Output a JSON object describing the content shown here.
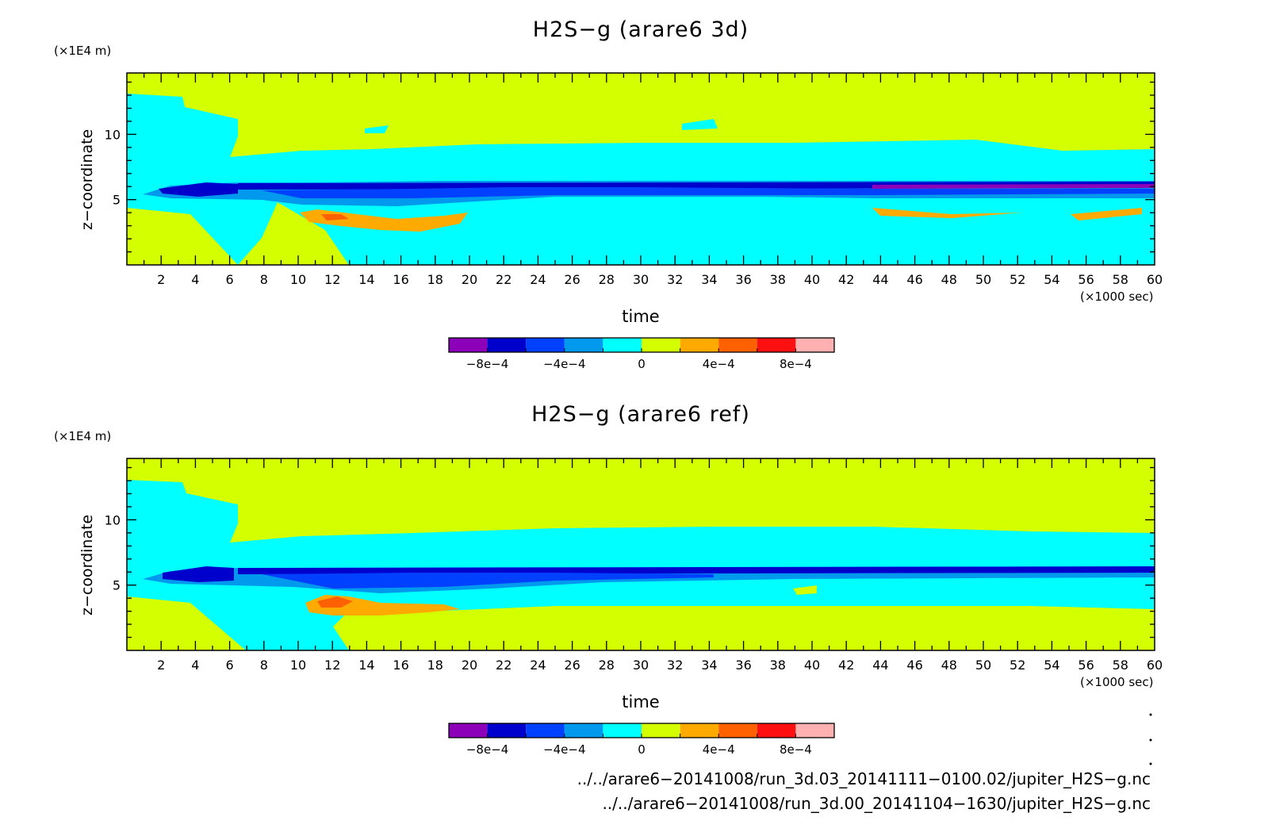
{
  "chart_data": [
    {
      "type": "heatmap",
      "title": "H2S−g (arare6 3d)",
      "xlabel": "time",
      "ylabel": "z−coordinate",
      "x_unit": "(×1000 sec)",
      "y_unit": "(×1E4 m)",
      "xlim": [
        0,
        60
      ],
      "ylim": [
        0,
        14.7
      ],
      "xticks": [
        "2",
        "4",
        "6",
        "8",
        "10",
        "12",
        "14",
        "16",
        "18",
        "20",
        "22",
        "24",
        "26",
        "28",
        "30",
        "32",
        "34",
        "36",
        "38",
        "40",
        "42",
        "44",
        "46",
        "48",
        "50",
        "52",
        "54",
        "56",
        "58",
        "60"
      ],
      "yticks": [
        "5",
        "10"
      ],
      "colorbar": {
        "colors": [
          "#8b00b8",
          "#0000cc",
          "#0040ff",
          "#0099ee",
          "#00ffff",
          "#d4ff00",
          "#ffaa00",
          "#ff6000",
          "#ff1010",
          "#ffb0b0"
        ],
        "ticks": [
          "−8e−4",
          "−4e−4",
          "0",
          "4e−4",
          "8e−4"
        ]
      }
    },
    {
      "type": "heatmap",
      "title": "H2S−g (arare6 ref)",
      "xlabel": "time",
      "ylabel": "z−coordinate",
      "x_unit": "(×1000 sec)",
      "y_unit": "(×1E4 m)",
      "xlim": [
        0,
        60
      ],
      "ylim": [
        0,
        14.7
      ],
      "xticks": [
        "2",
        "4",
        "6",
        "8",
        "10",
        "12",
        "14",
        "16",
        "18",
        "20",
        "22",
        "24",
        "26",
        "28",
        "30",
        "32",
        "34",
        "36",
        "38",
        "40",
        "42",
        "44",
        "46",
        "48",
        "50",
        "52",
        "54",
        "56",
        "58",
        "60"
      ],
      "yticks": [
        "5",
        "10"
      ],
      "colorbar": {
        "colors": [
          "#8b00b8",
          "#0000cc",
          "#0040ff",
          "#0099ee",
          "#00ffff",
          "#d4ff00",
          "#ffaa00",
          "#ff6000",
          "#ff1010",
          "#ffb0b0"
        ],
        "ticks": [
          "−8e−4",
          "−4e−4",
          "0",
          "4e−4",
          "8e−4"
        ]
      }
    }
  ],
  "footer": {
    "file1": "../../arare6−20141008/run_3d.03_20141111−0100.02/jupiter_H2S−g.nc",
    "file2": "../../arare6−20141008/run_3d.00_20141104−1630/jupiter_H2S−g.nc"
  }
}
